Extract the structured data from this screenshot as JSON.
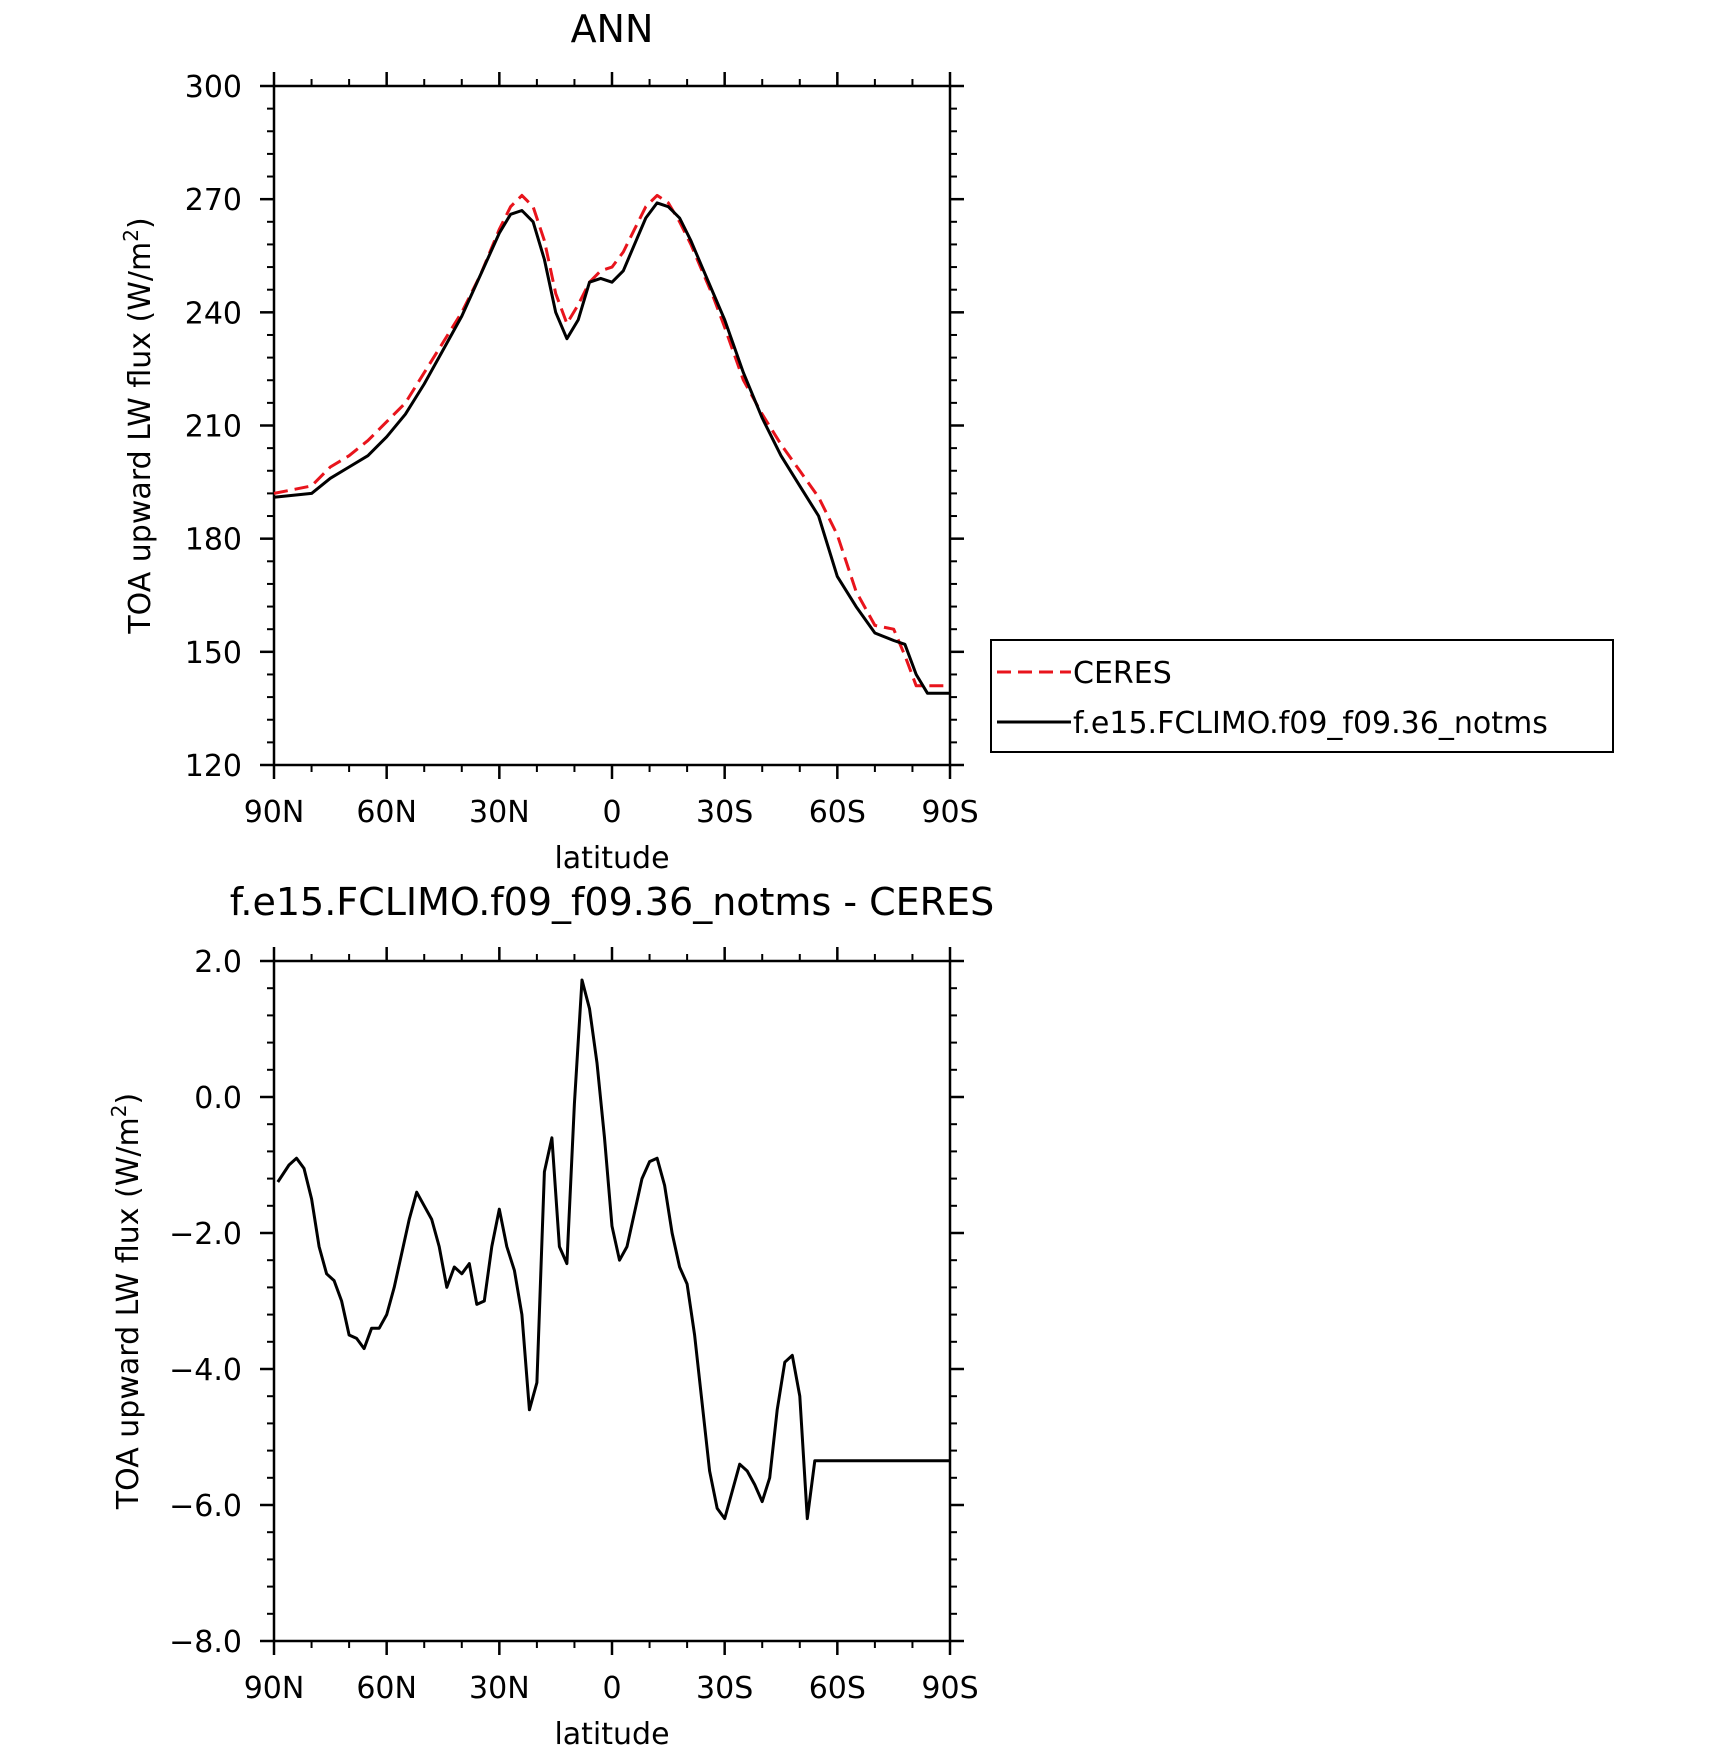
{
  "chart_data": [
    {
      "type": "line",
      "title": "ANN",
      "xlabel": "latitude",
      "ylabel": "TOA upward LW flux (W/m",
      "ylabel_sup": "2",
      "ylabel_tail": ")",
      "xlim": [
        90,
        -90
      ],
      "ylim": [
        120,
        300
      ],
      "x_ticks": [
        90,
        60,
        30,
        0,
        -30,
        -60,
        -90
      ],
      "x_tick_labels": [
        "90N",
        "60N",
        "30N",
        "0",
        "30S",
        "60S",
        "90S"
      ],
      "y_ticks": [
        120,
        150,
        180,
        210,
        240,
        270,
        300
      ],
      "y_tick_labels": [
        "120",
        "150",
        "180",
        "210",
        "240",
        "270",
        "300"
      ],
      "grid": false,
      "legend_position": "right",
      "series": [
        {
          "name": "CERES",
          "color": "#e8141c",
          "dash": "dashed",
          "x": [
            90,
            80,
            75,
            70,
            65,
            60,
            55,
            50,
            45,
            40,
            35,
            30,
            27,
            24,
            21,
            18,
            15,
            12,
            9,
            6,
            3,
            0,
            -3,
            -6,
            -9,
            -12,
            -15,
            -18,
            -21,
            -24,
            -27,
            -30,
            -35,
            -40,
            -45,
            -50,
            -55,
            -60,
            -65,
            -70,
            -75,
            -78,
            -81,
            -84,
            -87,
            -90
          ],
          "y": [
            192,
            194,
            199,
            202,
            206,
            211,
            216,
            224,
            232,
            240,
            250,
            262,
            268,
            271,
            268,
            259,
            245,
            237,
            242,
            248,
            251,
            252,
            256,
            262,
            268,
            271,
            269,
            264,
            258,
            251,
            244,
            236,
            222,
            213,
            205,
            198,
            191,
            181,
            166,
            157,
            156,
            149,
            141,
            141,
            141,
            141
          ]
        },
        {
          "name": "f.e15.FCLIMO.f09_f09.36_notms",
          "color": "#000000",
          "dash": "solid",
          "x": [
            90,
            80,
            75,
            70,
            65,
            60,
            55,
            50,
            45,
            40,
            35,
            30,
            27,
            24,
            21,
            18,
            15,
            12,
            9,
            6,
            3,
            0,
            -3,
            -6,
            -9,
            -12,
            -15,
            -18,
            -21,
            -24,
            -27,
            -30,
            -35,
            -40,
            -45,
            -50,
            -55,
            -60,
            -65,
            -70,
            -75,
            -78,
            -81,
            -84,
            -87,
            -90
          ],
          "y": [
            191,
            192,
            196,
            199,
            202,
            207,
            213,
            221,
            230,
            239,
            250,
            261,
            266,
            267,
            264,
            254,
            240,
            233,
            238,
            248,
            249,
            248,
            251,
            258,
            265,
            269,
            268,
            265,
            259,
            252,
            245,
            238,
            224,
            212,
            202,
            194,
            186,
            170,
            162,
            155,
            153,
            152,
            144,
            139,
            139,
            139
          ]
        }
      ]
    },
    {
      "type": "line",
      "title": "f.e15.FCLIMO.f09_f09.36_notms - CERES",
      "xlabel": "latitude",
      "ylabel": "TOA upward LW flux (W/m",
      "ylabel_sup": "2",
      "ylabel_tail": ")",
      "xlim": [
        90,
        -90
      ],
      "ylim": [
        -8.0,
        2.0
      ],
      "x_ticks": [
        90,
        60,
        30,
        0,
        -30,
        -60,
        -90
      ],
      "x_tick_labels": [
        "90N",
        "60N",
        "30N",
        "0",
        "30S",
        "60S",
        "90S"
      ],
      "y_ticks": [
        -8.0,
        -6.0,
        -4.0,
        -2.0,
        0.0,
        2.0
      ],
      "y_tick_labels": [
        "−8.0",
        "−6.0",
        "−4.0",
        "−2.0",
        "0.0",
        "2.0"
      ],
      "grid": false,
      "series": [
        {
          "color": "#000000",
          "dash": "solid",
          "x": [
            89,
            86,
            84,
            82,
            80,
            78,
            76,
            74,
            72,
            70,
            68,
            66,
            64,
            62,
            60,
            58,
            56,
            54,
            52,
            50,
            48,
            46,
            44,
            42,
            40,
            38,
            36,
            34,
            32,
            30,
            28,
            26,
            24,
            22,
            20,
            18,
            16,
            14,
            12,
            10,
            8,
            6,
            4,
            2,
            0,
            -2,
            -4,
            -6,
            -8,
            -10,
            -12,
            -14,
            -16,
            -18,
            -20,
            -22,
            -24,
            -26,
            -28,
            -30,
            -32,
            -34,
            -36,
            -38,
            -40,
            -42,
            -44,
            -46,
            -48,
            -50,
            -52,
            -54,
            -56,
            -58,
            -60,
            -62,
            -64,
            -66,
            -68,
            -70,
            -72,
            -74,
            -76,
            -78,
            -80,
            -82,
            -84,
            -86,
            -88,
            -90
          ],
          "y": [
            -1.25,
            -1.0,
            -0.9,
            -1.05,
            -1.5,
            -2.2,
            -2.6,
            -2.7,
            -3.0,
            -3.5,
            -3.55,
            -3.7,
            -3.4,
            -3.4,
            -3.2,
            -2.8,
            -2.3,
            -1.8,
            -1.4,
            -1.6,
            -1.8,
            -2.2,
            -2.8,
            -2.5,
            -2.6,
            -2.45,
            -3.05,
            -3.0,
            -2.2,
            -1.65,
            -2.2,
            -2.55,
            -3.2,
            -4.6,
            -4.2,
            -1.1,
            -0.6,
            -2.2,
            -2.45,
            -0.1,
            1.72,
            1.3,
            0.5,
            -0.6,
            -1.9,
            -2.4,
            -2.2,
            -1.7,
            -1.2,
            -0.95,
            -0.9,
            -1.3,
            -2.0,
            -2.5,
            -2.75,
            -3.5,
            -4.5,
            -5.5,
            -6.05,
            -6.2,
            -5.8,
            -5.4,
            -5.5,
            -5.7,
            -5.95,
            -5.6,
            -4.6,
            -3.9,
            -3.8,
            -4.4,
            -6.2,
            -5.35,
            -5.35,
            -5.35,
            -5.35,
            -5.35,
            -5.35,
            -5.35,
            -5.35,
            -5.35,
            -5.35,
            -5.35,
            -5.35,
            -5.35,
            -5.35,
            -5.35,
            -5.35,
            -5.35,
            -5.35,
            -5.35
          ]
        }
      ]
    }
  ]
}
